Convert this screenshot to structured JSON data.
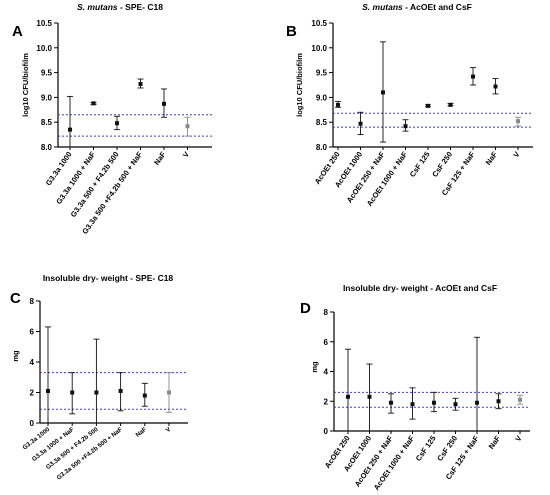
{
  "figure": {
    "panel_letters": [
      "A",
      "B",
      "C",
      "D"
    ]
  },
  "chart_data": [
    {
      "panel": "A",
      "type": "scatter",
      "title_italic": "S. mutans",
      "title_rest": " - SPE- C18",
      "ylabel": "log10 CFU/biofilm",
      "ylim": [
        8.0,
        10.5
      ],
      "yticks": [
        "8.0",
        "8.5",
        "9.0",
        "9.5",
        "10.0",
        "10.5"
      ],
      "yticks_values": [
        8.0,
        8.5,
        9.0,
        9.5,
        10.0,
        10.5
      ],
      "categories": [
        "G3.3a 1000",
        "G3.3a 1000 + NaF",
        "G3.3a 500 + F4.2b 500",
        "G3.3a 500 +F4.2b 500 + NaF",
        "NaF",
        "V"
      ],
      "means": [
        8.35,
        8.88,
        8.48,
        9.27,
        8.87,
        8.42
      ],
      "err_low": [
        7.7,
        8.86,
        8.35,
        9.19,
        8.6,
        8.22
      ],
      "err_high": [
        9.02,
        8.9,
        8.62,
        9.37,
        9.17,
        8.6
      ],
      "ref_lines": [
        8.65,
        8.22
      ],
      "grid": false
    },
    {
      "panel": "B",
      "type": "scatter",
      "title_italic": "S. mutans",
      "title_rest": " - AcOEt and CsF",
      "ylabel": "log10 CFU/biofilm",
      "ylim": [
        8.0,
        10.5
      ],
      "yticks": [
        "8.0",
        "8.5",
        "9.0",
        "9.5",
        "10.0",
        "10.5"
      ],
      "yticks_values": [
        8.0,
        8.5,
        9.0,
        9.5,
        10.0,
        10.5
      ],
      "categories": [
        "AcOEt 250",
        "AcOEt 1000",
        "AcOEt 250 + NaF",
        "AcOEt 1000 + NaF",
        "CsF 125",
        "CsF 250",
        "CsF 125 + NaF",
        "NaF",
        "V"
      ],
      "means": [
        8.85,
        8.47,
        9.1,
        8.42,
        8.83,
        8.85,
        9.42,
        9.22,
        8.52
      ],
      "err_low": [
        8.8,
        8.25,
        8.1,
        8.32,
        8.81,
        8.83,
        9.25,
        9.07,
        8.42
      ],
      "err_high": [
        8.92,
        8.7,
        10.12,
        8.55,
        8.85,
        8.88,
        9.6,
        9.38,
        8.6
      ],
      "ref_lines": [
        8.68,
        8.4
      ],
      "grid": false
    },
    {
      "panel": "C",
      "type": "scatter",
      "title": "Insoluble dry- weight - SPE- C18",
      "ylabel": "mg",
      "ylim": [
        0,
        8
      ],
      "yticks": [
        "0",
        "2",
        "4",
        "6",
        "8"
      ],
      "yticks_values": [
        0,
        2,
        4,
        6,
        8
      ],
      "categories": [
        "G3.3a 1000",
        "G3.3a 1000 + NaF",
        "G3.3a 500 + F4.2b 500",
        "G3.3a 500 +F4.2b 500 + NaF",
        "NaF",
        "V"
      ],
      "means": [
        2.1,
        2.0,
        2.0,
        2.1,
        1.8,
        2.0
      ],
      "err_low": [
        0.0,
        0.6,
        0.0,
        0.8,
        1.1,
        0.7
      ],
      "err_high": [
        6.3,
        3.3,
        5.5,
        3.3,
        2.6,
        3.3
      ],
      "ref_lines": [
        3.3,
        0.9
      ],
      "grid": false
    },
    {
      "panel": "D",
      "type": "scatter",
      "title": "Insoluble dry- weight - AcOEt and CsF",
      "ylabel": "mg",
      "ylim": [
        0,
        8
      ],
      "yticks": [
        "0",
        "2",
        "4",
        "6",
        "8"
      ],
      "yticks_values": [
        0,
        2,
        4,
        6,
        8
      ],
      "categories": [
        "AcOEt 250",
        "AcOEt 1000",
        "AcOEt 250 + NaF",
        "AcOEt 1000 + NaF",
        "CsF 125",
        "CsF 250",
        "CsF 125 + NaF",
        "NaF",
        "V"
      ],
      "means": [
        2.3,
        2.3,
        1.9,
        1.8,
        1.9,
        1.8,
        1.9,
        2.0,
        2.1
      ],
      "err_low": [
        0.0,
        0.0,
        1.2,
        0.8,
        1.3,
        1.4,
        0.0,
        1.5,
        1.8
      ],
      "err_high": [
        5.5,
        4.5,
        2.5,
        2.9,
        2.6,
        2.2,
        6.3,
        2.5,
        2.4
      ],
      "ref_lines": [
        2.6,
        1.6
      ],
      "grid": false
    }
  ],
  "colors": {
    "axis": "#000000",
    "marker": "#111111",
    "vehicle_marker": "#8a8a8a",
    "ref_line": "#3b3bd6"
  }
}
